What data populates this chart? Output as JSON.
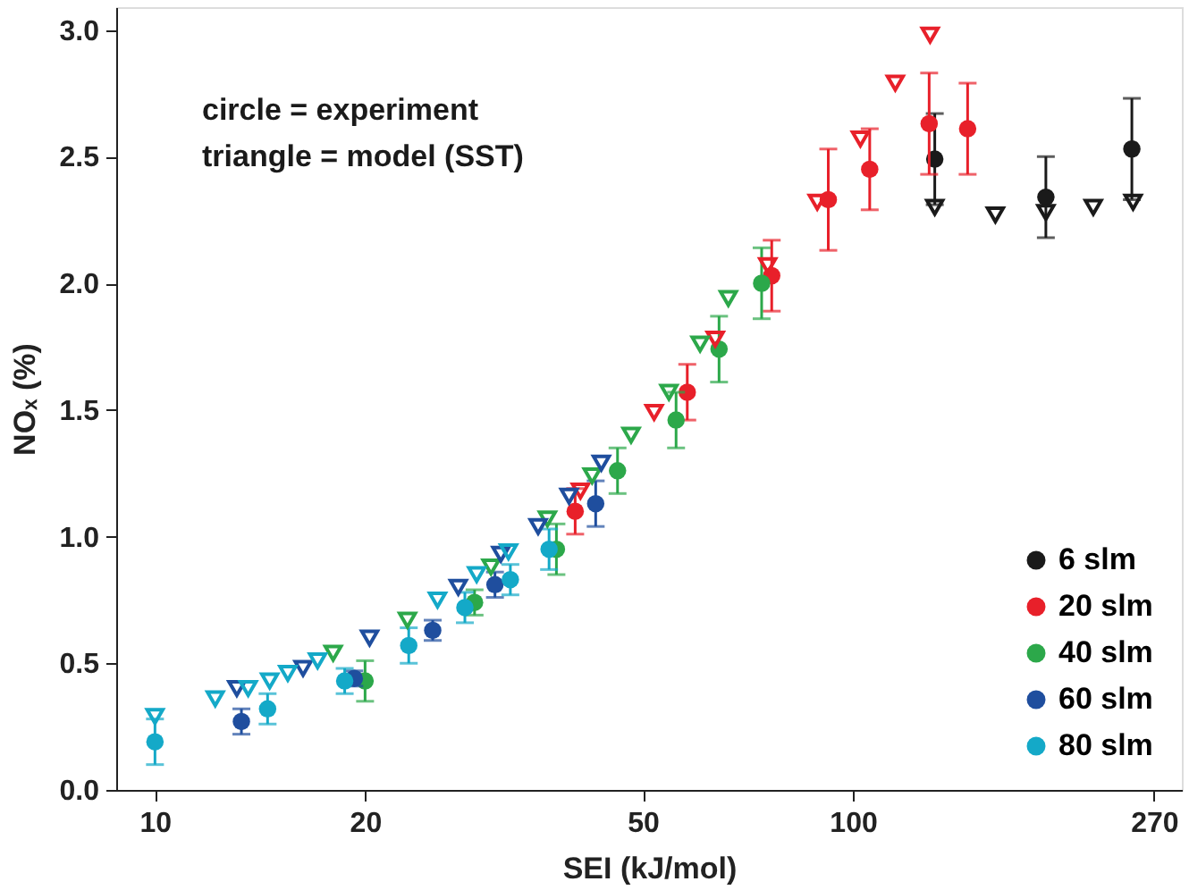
{
  "chart_data": {
    "type": "scatter",
    "xlabel": "SEI (kJ/mol)",
    "ylabel": "NOₓ (%)",
    "log": "x",
    "xlim": [
      8.8,
      296
    ],
    "xticks": [
      10,
      20,
      50,
      100,
      270
    ],
    "ylim": [
      0,
      3.09
    ],
    "yticks": [
      {
        "value": 0,
        "label": "0.0"
      },
      {
        "value": 0.5,
        "label": "0.5"
      },
      {
        "value": 1,
        "label": "1.0"
      },
      {
        "value": 1.5,
        "label": "1.5"
      },
      {
        "value": 2,
        "label": "2.0"
      },
      {
        "value": 2.5,
        "label": "2.5"
      },
      {
        "value": 3,
        "label": "3.0"
      }
    ],
    "grid": false,
    "legend": "bottom right",
    "annotations": [
      "circle = experiment",
      "triangle = model (SST)"
    ],
    "series": [
      {
        "name": "6 slm",
        "color": "#1a1a1a",
        "marker": "circle",
        "x": [
          131,
          189,
          251
        ],
        "values": [
          2.49,
          2.34,
          2.53
        ],
        "errors": [
          0.18,
          0.16,
          0.2
        ]
      },
      {
        "name": "20 slm",
        "color": "#e8202a",
        "marker": "circle",
        "x": [
          40,
          57.9,
          76.5,
          92.2,
          105.7,
          128.6,
          146
        ],
        "values": [
          1.1,
          1.57,
          2.03,
          2.33,
          2.45,
          2.63,
          2.61
        ],
        "errors": [
          0.09,
          0.11,
          0.14,
          0.2,
          0.16,
          0.2,
          0.18
        ]
      },
      {
        "name": "40 slm",
        "color": "#2ca84a",
        "marker": "circle",
        "x": [
          20,
          28.7,
          37.6,
          46,
          55.8,
          64.3,
          74
        ],
        "values": [
          0.43,
          0.74,
          0.95,
          1.26,
          1.46,
          1.74,
          2.0
        ],
        "errors": [
          0.08,
          0.05,
          0.1,
          0.09,
          0.11,
          0.13,
          0.14
        ]
      },
      {
        "name": "60 slm",
        "color": "#1f4e9e",
        "marker": "circle",
        "x": [
          13.3,
          19.3,
          25,
          30.7,
          42.8
        ],
        "values": [
          0.27,
          0.44,
          0.63,
          0.81,
          1.13
        ],
        "errors": [
          0.05,
          0.03,
          0.04,
          0.05,
          0.09
        ]
      },
      {
        "name": "80 slm",
        "color": "#14a9c8",
        "marker": "circle",
        "x": [
          10,
          14.5,
          18.7,
          23.1,
          27.8,
          32.3,
          36.7
        ],
        "values": [
          0.19,
          0.32,
          0.43,
          0.57,
          0.72,
          0.83,
          0.95
        ],
        "errors": [
          0.09,
          0.06,
          0.05,
          0.07,
          0.06,
          0.06,
          0.08
        ]
      },
      {
        "color": "#1a1a1a",
        "marker": "triangle",
        "x": [
          131,
          160,
          189,
          221,
          252
        ],
        "values": [
          2.3,
          2.27,
          2.28,
          2.3,
          2.32
        ]
      },
      {
        "color": "#e8202a",
        "marker": "triangle",
        "x": [
          40.7,
          51.9,
          63.5,
          75.5,
          88.9,
          102.5,
          115,
          129
        ],
        "values": [
          1.18,
          1.49,
          1.78,
          2.07,
          2.32,
          2.57,
          2.79,
          2.98
        ]
      },
      {
        "color": "#2ca84a",
        "marker": "triangle",
        "x": [
          18,
          23,
          30.3,
          36.5,
          42.3,
          48.1,
          54.5,
          60.4,
          66.3
        ],
        "values": [
          0.54,
          0.67,
          0.88,
          1.07,
          1.24,
          1.4,
          1.57,
          1.76,
          1.94
        ]
      },
      {
        "color": "#1f4e9e",
        "marker": "triangle",
        "x": [
          13.1,
          16.3,
          20.3,
          27.2,
          31.3,
          35.4,
          39.2,
          43.6
        ],
        "values": [
          0.4,
          0.48,
          0.6,
          0.8,
          0.93,
          1.04,
          1.16,
          1.29
        ]
      },
      {
        "color": "#14a9c8",
        "marker": "triangle",
        "x": [
          10,
          12.2,
          13.6,
          14.6,
          15.5,
          17.1,
          25.4,
          28.9,
          32.1
        ],
        "values": [
          0.29,
          0.36,
          0.4,
          0.43,
          0.46,
          0.51,
          0.75,
          0.85,
          0.94
        ]
      }
    ]
  }
}
